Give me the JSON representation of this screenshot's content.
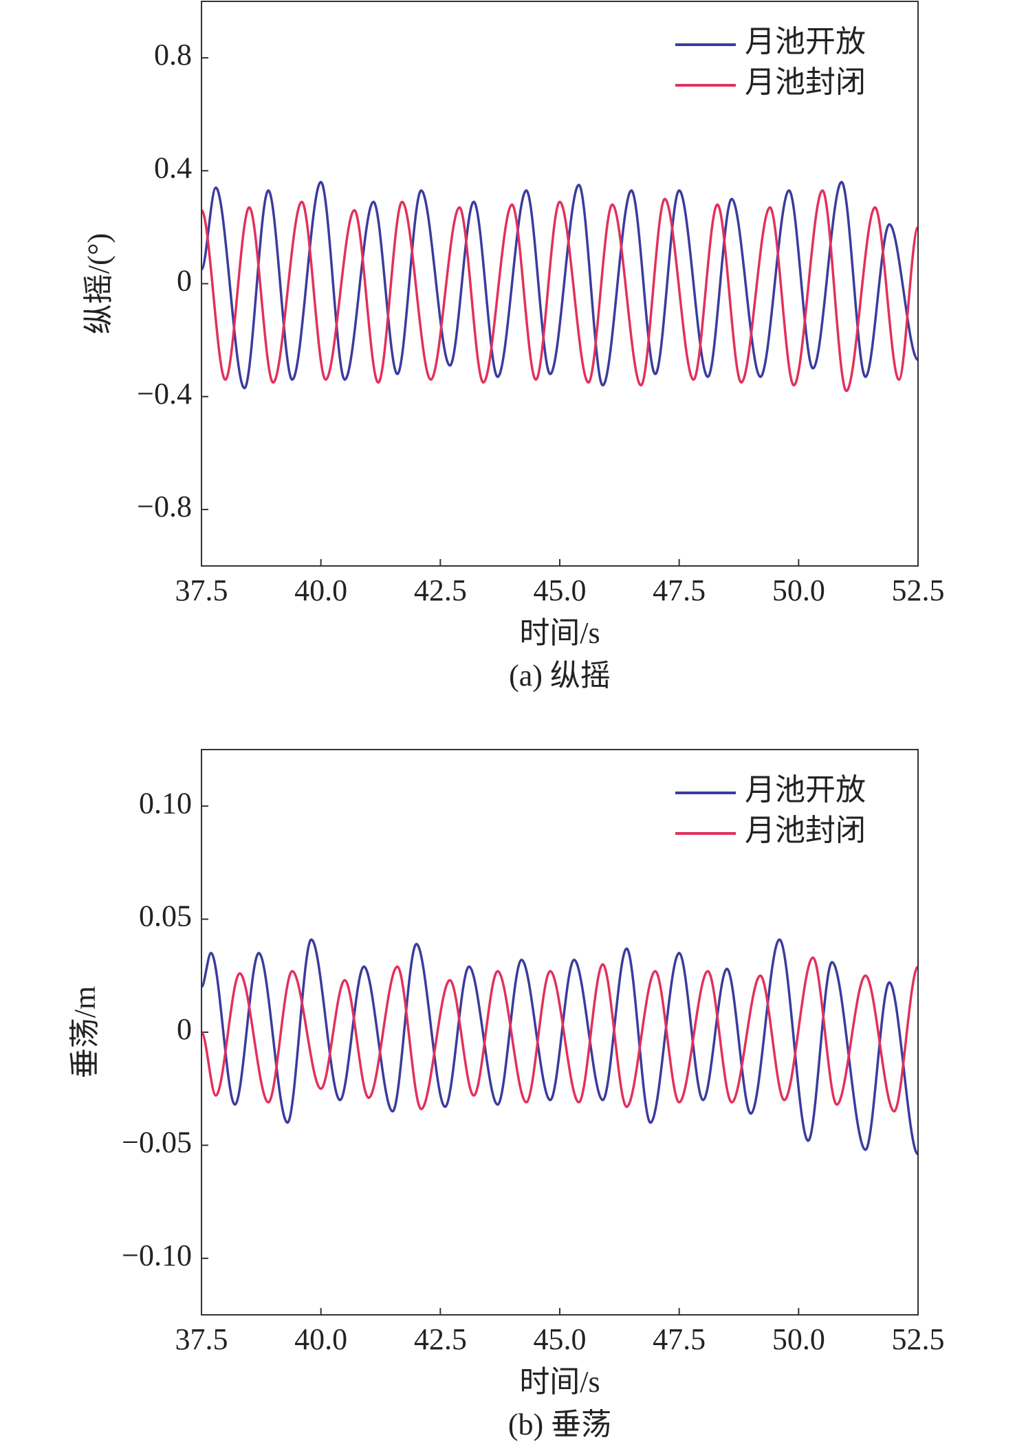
{
  "chart_data": [
    {
      "type": "line",
      "xlabel": "时间/s",
      "ylabel": "纵摇/(°)",
      "caption": "(a) 纵摇",
      "xlim": [
        37.5,
        52.5
      ],
      "ylim": [
        -1,
        1
      ],
      "xticks": [
        37.5,
        {
          "value": 40,
          "label": "40.0"
        },
        42.5,
        {
          "value": 45,
          "label": "45.0"
        },
        47.5,
        {
          "value": 50,
          "label": "50.0"
        },
        52.5
      ],
      "yticks": [
        {
          "value": -0.8,
          "label": "−0.8"
        },
        {
          "value": -0.4,
          "label": "−0.4"
        },
        0,
        0.4,
        0.8
      ],
      "legend": "upper right",
      "series": [
        {
          "name": "月池开放",
          "color": "#3b3b9e",
          "x": [
            37.5,
            37.8,
            38.4,
            38.9,
            39.4,
            40.0,
            40.5,
            41.1,
            41.6,
            42.1,
            42.7,
            43.2,
            43.7,
            44.3,
            44.8,
            45.4,
            45.9,
            46.5,
            47.0,
            47.5,
            48.1,
            48.6,
            49.2,
            49.8,
            50.3,
            50.9,
            51.4,
            51.9,
            52.5
          ],
          "values": [
            0.05,
            0.34,
            -0.37,
            0.33,
            -0.34,
            0.36,
            -0.34,
            0.29,
            -0.32,
            0.33,
            -0.29,
            0.29,
            -0.33,
            0.33,
            -0.32,
            0.35,
            -0.36,
            0.33,
            -0.32,
            0.33,
            -0.33,
            0.3,
            -0.33,
            0.33,
            -0.3,
            0.36,
            -0.33,
            0.21,
            -0.27
          ]
        },
        {
          "name": "月池封闭",
          "color": "#e2305c",
          "x": [
            37.5,
            38.0,
            38.5,
            39.0,
            39.6,
            40.1,
            40.7,
            41.2,
            41.7,
            42.3,
            42.9,
            43.4,
            44.0,
            44.5,
            45.0,
            45.6,
            46.1,
            46.7,
            47.2,
            47.8,
            48.3,
            48.8,
            49.4,
            49.9,
            50.5,
            51.0,
            51.6,
            52.1,
            52.5
          ],
          "values": [
            0.26,
            -0.34,
            0.27,
            -0.35,
            0.29,
            -0.34,
            0.26,
            -0.35,
            0.29,
            -0.34,
            0.27,
            -0.35,
            0.28,
            -0.34,
            0.29,
            -0.35,
            0.28,
            -0.36,
            0.3,
            -0.34,
            0.28,
            -0.35,
            0.27,
            -0.36,
            0.33,
            -0.38,
            0.27,
            -0.34,
            0.2
          ]
        }
      ]
    },
    {
      "type": "line",
      "xlabel": "时间/s",
      "ylabel": "垂荡/m",
      "caption": "(b) 垂荡",
      "xlim": [
        37.5,
        52.5
      ],
      "ylim": [
        -0.125,
        0.125
      ],
      "xticks": [
        37.5,
        {
          "value": 40,
          "label": "40.0"
        },
        42.5,
        {
          "value": 45,
          "label": "45.0"
        },
        47.5,
        {
          "value": 50,
          "label": "50.0"
        },
        52.5
      ],
      "yticks": [
        {
          "value": -0.1,
          "label": "−0.10"
        },
        {
          "value": -0.05,
          "label": "−0.05"
        },
        0,
        0.05,
        {
          "value": 0.1,
          "label": "0.10"
        }
      ],
      "legend": "upper right",
      "series": [
        {
          "name": "月池开放",
          "color": "#3b3b9e",
          "x": [
            37.5,
            37.7,
            38.2,
            38.7,
            39.3,
            39.8,
            40.4,
            40.9,
            41.5,
            42.0,
            42.6,
            43.1,
            43.7,
            44.2,
            44.8,
            45.3,
            45.9,
            46.4,
            46.9,
            47.5,
            48.0,
            48.5,
            49.0,
            49.6,
            50.2,
            50.7,
            51.4,
            51.9,
            52.5
          ],
          "values": [
            0.02,
            0.035,
            -0.032,
            0.035,
            -0.04,
            0.041,
            -0.03,
            0.029,
            -0.035,
            0.039,
            -0.033,
            0.029,
            -0.032,
            0.032,
            -0.03,
            0.032,
            -0.03,
            0.037,
            -0.04,
            0.035,
            -0.03,
            0.028,
            -0.036,
            0.041,
            -0.048,
            0.031,
            -0.052,
            0.022,
            -0.054
          ]
        },
        {
          "name": "月池封闭",
          "color": "#e2305c",
          "x": [
            37.5,
            37.8,
            38.3,
            38.9,
            39.4,
            40.0,
            40.5,
            41.0,
            41.6,
            42.1,
            42.7,
            43.2,
            43.7,
            44.3,
            44.8,
            45.4,
            45.9,
            46.4,
            47.0,
            47.5,
            48.1,
            48.6,
            49.2,
            49.7,
            50.3,
            50.8,
            51.4,
            52.0,
            52.5
          ],
          "values": [
            0,
            -0.028,
            0.026,
            -0.031,
            0.027,
            -0.025,
            0.023,
            -0.029,
            0.029,
            -0.034,
            0.023,
            -0.028,
            0.027,
            -0.031,
            0.027,
            -0.031,
            0.03,
            -0.033,
            0.027,
            -0.031,
            0.027,
            -0.031,
            0.025,
            -0.03,
            0.033,
            -0.032,
            0.025,
            -0.035,
            0.029
          ]
        }
      ]
    }
  ]
}
